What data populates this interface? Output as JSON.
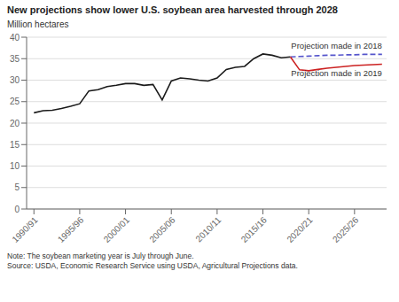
{
  "chart_data": {
    "type": "line",
    "title": "New projections show lower U.S. soybean area harvested through 2028",
    "ylabel": "Million hectares",
    "note": "Note: The soybean marketing year is July through June.\nSource: USDA, Economic Research Service using USDA, Agricultural Projections data.",
    "xlim": [
      -0.8,
      38.5
    ],
    "xticks": [
      {
        "value": 0,
        "label": "1990/91"
      },
      {
        "value": 5,
        "label": "1995/96"
      },
      {
        "value": 10,
        "label": "2000/01"
      },
      {
        "value": 15,
        "label": "2005/06"
      },
      {
        "value": 20,
        "label": "2010/11"
      },
      {
        "value": 25,
        "label": "2015/16"
      },
      {
        "value": 30,
        "label": "2020/21"
      },
      {
        "value": 35,
        "label": "2025/26"
      }
    ],
    "ylim": [
      0,
      40
    ],
    "yticks": [
      0,
      5,
      10,
      15,
      20,
      25,
      30,
      35,
      40
    ],
    "grid": true,
    "series": [
      {
        "x": [
          0,
          1,
          2,
          3,
          4,
          5,
          6,
          7,
          8,
          9,
          10,
          11,
          12,
          13,
          14,
          15,
          16,
          17,
          18,
          19,
          20,
          21,
          22,
          23,
          24,
          25,
          26,
          27,
          28
        ],
        "values": [
          22.4,
          22.9,
          23.0,
          23.4,
          23.9,
          24.5,
          27.5,
          27.8,
          28.5,
          28.8,
          29.2,
          29.2,
          28.8,
          29.0,
          25.4,
          29.8,
          30.5,
          30.3,
          30.0,
          29.8,
          30.5,
          32.5,
          33.0,
          33.2,
          35.0,
          36.1,
          35.8,
          35.2,
          35.4
        ],
        "color": "#1a1a1a",
        "line_style": "solid"
      },
      {
        "name": "Projection made in 2018",
        "x": [
          28,
          29,
          30,
          31,
          32,
          33,
          34,
          35,
          36,
          37,
          38
        ],
        "values": [
          35.4,
          35.5,
          35.6,
          35.7,
          35.8,
          35.8,
          35.9,
          35.9,
          36.0,
          36.0,
          36.0
        ],
        "color": "#5555cc",
        "line_style": "dashed"
      },
      {
        "name": "Projection made in 2019",
        "x": [
          28,
          29,
          30,
          31,
          32,
          33,
          34,
          35,
          36,
          37,
          38
        ],
        "values": [
          35.4,
          32.4,
          32.2,
          32.5,
          32.8,
          33.0,
          33.2,
          33.4,
          33.5,
          33.6,
          33.7
        ],
        "color": "#cc2222",
        "line_style": "solid"
      }
    ]
  }
}
